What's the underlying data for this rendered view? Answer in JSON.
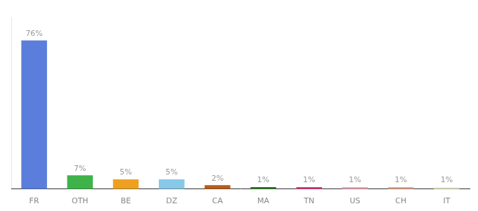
{
  "chart_data": {
    "type": "bar",
    "categories": [
      "FR",
      "OTH",
      "BE",
      "DZ",
      "CA",
      "MA",
      "TN",
      "US",
      "CH",
      "IT"
    ],
    "values": [
      76,
      7,
      5,
      5,
      2,
      1,
      1,
      1,
      1,
      1
    ],
    "value_labels": [
      "76%",
      "7%",
      "5%",
      "5%",
      "2%",
      "1%",
      "1%",
      "1%",
      "1%",
      "1%"
    ],
    "colors": [
      "#5b7ddb",
      "#3db34a",
      "#f0a020",
      "#88c8e8",
      "#b85c18",
      "#2a7a20",
      "#e8357a",
      "#f0a8b8",
      "#e8a890",
      "#f0f0cc"
    ],
    "ylim": [
      0,
      88
    ],
    "grid": false,
    "data_labels": true,
    "tick_labels": "x"
  }
}
